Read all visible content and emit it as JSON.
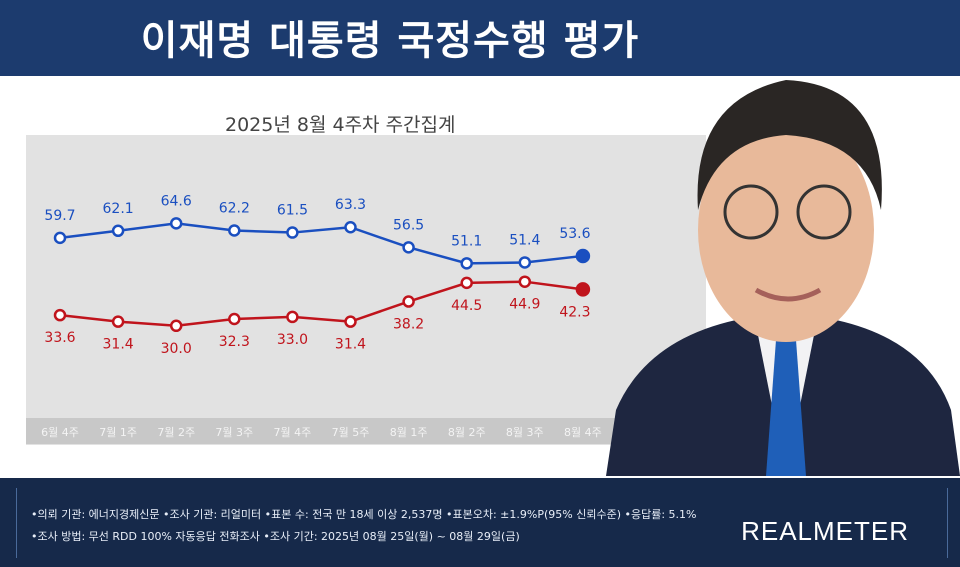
{
  "header": {
    "title": "이재명 대통령 국정수행 평가"
  },
  "chart_data": {
    "type": "line",
    "title": "2025년 8월 4주차 주간집계",
    "categories": [
      "6월 4주",
      "7월 1주",
      "7월 2주",
      "7월 3주",
      "7월 4주",
      "7월 5주",
      "8월 1주",
      "8월 2주",
      "8월 3주",
      "8월 4주"
    ],
    "series": [
      {
        "values": [
          59.7,
          62.1,
          64.6,
          62.2,
          61.5,
          63.3,
          56.5,
          51.1,
          51.4,
          53.6
        ],
        "color": "#1a4fc0"
      },
      {
        "values": [
          33.6,
          31.4,
          30.0,
          32.3,
          33.0,
          31.4,
          38.2,
          44.5,
          44.9,
          42.3
        ],
        "color": "#c0141c"
      }
    ],
    "grid": false
  },
  "footer": {
    "line1": "•의뢰 기관: 에너지경제신문 •조사 기관: 리얼미터 •표본 수: 전국 만 18세 이상 2,537명 •표본오차: ±1.9%P(95% 신뢰수준) •응답률: 5.1%",
    "line2": "•조사 방법: 무선 RDD 100% 자동응답 전화조사 •조사 기간: 2025년 08월 25일(월) ~ 08월 29일(금)",
    "logo": "REALMETER"
  }
}
